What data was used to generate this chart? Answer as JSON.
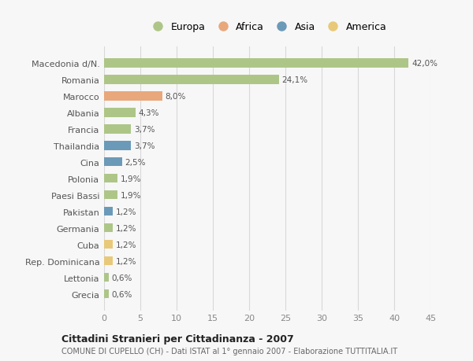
{
  "categories": [
    "Macedonia d/N.",
    "Romania",
    "Marocco",
    "Albania",
    "Francia",
    "Thailandia",
    "Cina",
    "Polonia",
    "Paesi Bassi",
    "Pakistan",
    "Germania",
    "Cuba",
    "Rep. Dominicana",
    "Lettonia",
    "Grecia"
  ],
  "values": [
    42.0,
    24.1,
    8.0,
    4.3,
    3.7,
    3.7,
    2.5,
    1.9,
    1.9,
    1.2,
    1.2,
    1.2,
    1.2,
    0.6,
    0.6
  ],
  "labels": [
    "42,0%",
    "24,1%",
    "8,0%",
    "4,3%",
    "3,7%",
    "3,7%",
    "2,5%",
    "1,9%",
    "1,9%",
    "1,2%",
    "1,2%",
    "1,2%",
    "1,2%",
    "0,6%",
    "0,6%"
  ],
  "colors": [
    "#adc688",
    "#adc688",
    "#e8a87c",
    "#adc688",
    "#adc688",
    "#6b9ab8",
    "#6b9ab8",
    "#adc688",
    "#adc688",
    "#6b9ab8",
    "#adc688",
    "#e8c97a",
    "#e8c97a",
    "#adc688",
    "#adc688"
  ],
  "legend_labels": [
    "Europa",
    "Africa",
    "Asia",
    "America"
  ],
  "legend_colors": [
    "#adc688",
    "#e8a87c",
    "#6b9ab8",
    "#e8c97a"
  ],
  "title1": "Cittadini Stranieri per Cittadinanza - 2007",
  "title2": "COMUNE DI CUPELLO (CH) - Dati ISTAT al 1° gennaio 2007 - Elaborazione TUTTITALIA.IT",
  "xlim": [
    0,
    45
  ],
  "xticks": [
    0,
    5,
    10,
    15,
    20,
    25,
    30,
    35,
    40,
    45
  ],
  "background_color": "#f7f7f7",
  "grid_color": "#d8d8d8"
}
